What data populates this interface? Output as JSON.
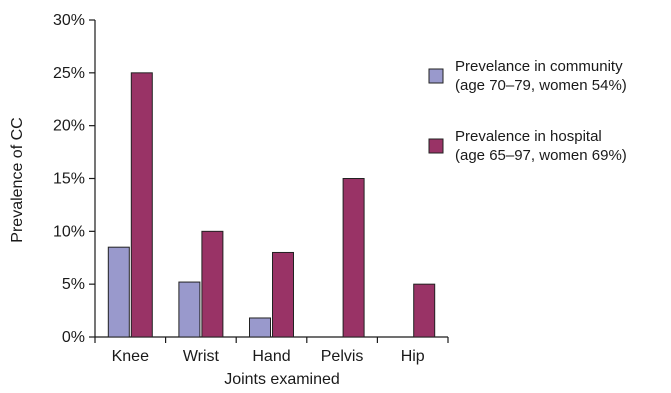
{
  "chart_data": {
    "type": "bar",
    "categories": [
      "Knee",
      "Wrist",
      "Hand",
      "Pelvis",
      "Hip"
    ],
    "series": [
      {
        "name": "Prevelance in community (age 70–79, women 54%)",
        "name_lines": [
          "Prevelance in community",
          "(age 70–79, women 54%)"
        ],
        "color": "#9999cc",
        "values": [
          8.5,
          5.2,
          1.8,
          null,
          null
        ]
      },
      {
        "name": "Prevalence in hospital (age 65–97, women 69%)",
        "name_lines": [
          "Prevalence in hospital",
          "(age 65–97, women 69%)"
        ],
        "color": "#993366",
        "values": [
          25,
          10,
          8,
          15,
          5
        ]
      }
    ],
    "xlabel": "Joints examined",
    "ylabel": "Prevalence of CC",
    "ylim": [
      0,
      30
    ],
    "yticks": [
      0,
      5,
      10,
      15,
      20,
      25,
      30
    ],
    "ytick_labels": [
      "0%",
      "5%",
      "10%",
      "15%",
      "20%",
      "25%",
      "30%"
    ],
    "grid": false,
    "legend_position": "right"
  }
}
